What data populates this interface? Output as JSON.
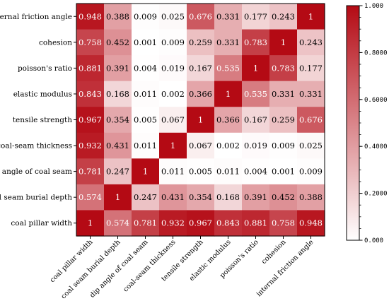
{
  "chart_data": {
    "type": "heatmap",
    "title": "",
    "rows": [
      "internal friction angle",
      "cohesion",
      "poisson's ratio",
      "elastic modulus",
      "tensile strength",
      "coal-seam thickness",
      "dip angle of coal seam",
      "coal seam burial depth",
      "coal pillar width"
    ],
    "columns": [
      "coal pillar width",
      "coal seam burial depth",
      "dip angle of coal seam",
      "coal-seam thickness",
      "tensile strength",
      "elastic modulus",
      "poisson's ratio",
      "cohesion",
      "internal friction angle"
    ],
    "values": [
      [
        0.948,
        0.388,
        0.009,
        0.025,
        0.676,
        0.331,
        0.177,
        0.243,
        1
      ],
      [
        0.758,
        0.452,
        0.001,
        0.009,
        0.259,
        0.331,
        0.783,
        1,
        0.243
      ],
      [
        0.881,
        0.391,
        0.004,
        0.019,
        0.167,
        0.535,
        1,
        0.783,
        0.177
      ],
      [
        0.843,
        0.168,
        0.011,
        0.002,
        0.366,
        1,
        0.535,
        0.331,
        0.331
      ],
      [
        0.967,
        0.354,
        0.005,
        0.067,
        1,
        0.366,
        0.167,
        0.259,
        0.676
      ],
      [
        0.932,
        0.431,
        0.011,
        1,
        0.067,
        0.002,
        0.019,
        0.009,
        0.025
      ],
      [
        0.781,
        0.247,
        1,
        0.011,
        0.005,
        0.011,
        0.004,
        0.001,
        0.009
      ],
      [
        0.574,
        1,
        0.247,
        0.431,
        0.354,
        0.168,
        0.391,
        0.452,
        0.388
      ],
      [
        1,
        0.574,
        0.781,
        0.932,
        0.967,
        0.843,
        0.881,
        0.758,
        0.948
      ]
    ],
    "cell_labels": [
      [
        "0.948",
        "0.388",
        "0.009",
        "0.025",
        "0.676",
        "0.331",
        "0.177",
        "0.243",
        "1"
      ],
      [
        "0.758",
        "0.452",
        "0.001",
        "0.009",
        "0.259",
        "0.331",
        "0.783",
        "1",
        "0.243"
      ],
      [
        "0.881",
        "0.391",
        "0.004",
        "0.019",
        "0.167",
        "0.535",
        "1",
        "0.783",
        "0.177"
      ],
      [
        "0.843",
        "0.168",
        "0.011",
        "0.002",
        "0.366",
        "1",
        "0.535",
        "0.331",
        "0.331"
      ],
      [
        "0.967",
        "0.354",
        "0.005",
        "0.067",
        "1",
        "0.366",
        "0.167",
        "0.259",
        "0.676"
      ],
      [
        "0.932",
        "0.431",
        "0.011",
        "1",
        "0.067",
        "0.002",
        "0.019",
        "0.009",
        "0.025"
      ],
      [
        "0.781",
        "0.247",
        "1",
        "0.011",
        "0.005",
        "0.011",
        "0.004",
        "0.001",
        "0.009"
      ],
      [
        "0.574",
        "1",
        "0.247",
        "0.431",
        "0.354",
        "0.168",
        "0.391",
        "0.452",
        "0.388"
      ],
      [
        "1",
        "0.574",
        "0.781",
        "0.932",
        "0.967",
        "0.843",
        "0.881",
        "0.758",
        "0.948"
      ]
    ],
    "colorbar": {
      "range": [
        0,
        1
      ],
      "ticks": [
        0,
        0.2,
        0.4,
        0.6,
        0.8,
        1
      ],
      "tick_labels": [
        "0.000",
        "0.2000",
        "0.4000",
        "0.6000",
        "0.8000",
        "1.000"
      ],
      "minor_step": 0.05,
      "color_low": "#ffffff",
      "color_high": "#b40a14"
    },
    "text_color_dark": "#000000",
    "text_color_light": "#ffffff",
    "light_text_threshold": 0.5
  }
}
